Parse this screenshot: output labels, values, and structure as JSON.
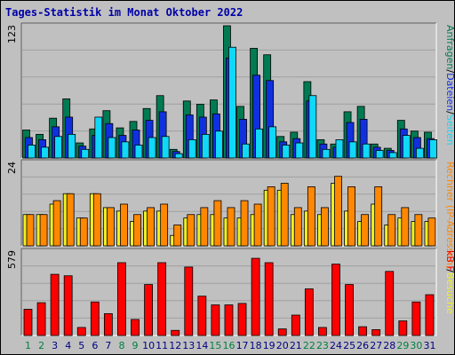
{
  "title": "Tages-Statistik im Monat Oktober 2022",
  "colors": {
    "anfragen": "#007a52",
    "dateien": "#1030e0",
    "seiten": "#10d8f8",
    "besuche": "#f0f020",
    "rechner": "#ff8800",
    "kb": "#ff0000",
    "weekend_label": "#008040",
    "weekday_label": "#000080"
  },
  "chart_data": [
    {
      "type": "bar",
      "title": "",
      "y_max_label": "123",
      "ylim": [
        0,
        123
      ],
      "grid": true,
      "categories": [
        "1",
        "2",
        "3",
        "4",
        "5",
        "6",
        "7",
        "8",
        "9",
        "10",
        "11",
        "12",
        "13",
        "14",
        "15",
        "16",
        "17",
        "18",
        "19",
        "20",
        "21",
        "22",
        "23",
        "24",
        "25",
        "26",
        "27",
        "28",
        "29",
        "30",
        "31"
      ],
      "weekend_days": [
        "1",
        "2",
        "8",
        "9",
        "15",
        "16",
        "22",
        "23",
        "29",
        "30"
      ],
      "legend_label": "Anfragen/Dateien/Seiten",
      "legend_parts": [
        "Anfragen",
        "/",
        "Dateien",
        "/",
        "Seiten"
      ],
      "series": [
        {
          "name": "Anfragen",
          "values": [
            26,
            22,
            37,
            55,
            14,
            27,
            44,
            28,
            34,
            46,
            58,
            8,
            53,
            50,
            54,
            123,
            48,
            102,
            96,
            20,
            24,
            71,
            17,
            13,
            43,
            48,
            13,
            9,
            35,
            25,
            24
          ]
        },
        {
          "name": "Dateien",
          "values": [
            19,
            17,
            29,
            38,
            11,
            21,
            32,
            21,
            26,
            35,
            43,
            6,
            40,
            38,
            41,
            93,
            36,
            77,
            72,
            15,
            18,
            53,
            13,
            10,
            33,
            36,
            10,
            7,
            27,
            19,
            18
          ]
        },
        {
          "name": "Seiten",
          "values": [
            12,
            10,
            20,
            22,
            8,
            38,
            19,
            15,
            12,
            19,
            20,
            4,
            17,
            22,
            25,
            103,
            13,
            27,
            29,
            12,
            14,
            58,
            8,
            17,
            15,
            13,
            7,
            5,
            21,
            9,
            17
          ]
        }
      ]
    },
    {
      "type": "bar",
      "title": "",
      "y_max_label": "24",
      "ylim": [
        0,
        24
      ],
      "grid": true,
      "categories": [
        "1",
        "2",
        "3",
        "4",
        "5",
        "6",
        "7",
        "8",
        "9",
        "10",
        "11",
        "12",
        "13",
        "14",
        "15",
        "16",
        "17",
        "18",
        "19",
        "20",
        "21",
        "22",
        "23",
        "24",
        "25",
        "26",
        "27",
        "28",
        "29",
        "30",
        "31"
      ],
      "legend_label": "Rechner (IP-Adressen)/Besuche",
      "legend_parts": [
        "Rechner (IP-Adressen)",
        "/",
        "Besuche"
      ],
      "series": [
        {
          "name": "Rechner (IP-Adressen)",
          "values": [
            9,
            9,
            13,
            15,
            8,
            15,
            11,
            12,
            9,
            11,
            12,
            6,
            9,
            11,
            13,
            11,
            13,
            12,
            17,
            18,
            11,
            17,
            11,
            20,
            17,
            9,
            17,
            9,
            11,
            9,
            8
          ]
        },
        {
          "name": "Besuche",
          "values": [
            9,
            9,
            12,
            15,
            8,
            15,
            11,
            10,
            7,
            10,
            10,
            3,
            8,
            9,
            9,
            8,
            8,
            9,
            16,
            16,
            9,
            10,
            9,
            18,
            10,
            7,
            12,
            6,
            8,
            7,
            7
          ]
        }
      ]
    },
    {
      "type": "bar",
      "title": "",
      "y_max_label": "579",
      "ylim": [
        0,
        579
      ],
      "grid": true,
      "categories": [
        "1",
        "2",
        "3",
        "4",
        "5",
        "6",
        "7",
        "8",
        "9",
        "10",
        "11",
        "12",
        "13",
        "14",
        "15",
        "16",
        "17",
        "18",
        "19",
        "20",
        "21",
        "22",
        "23",
        "24",
        "25",
        "26",
        "27",
        "28",
        "29",
        "30",
        "31"
      ],
      "legend_label": "kB F",
      "series": [
        {
          "name": "kB F",
          "values": [
            180,
            225,
            420,
            410,
            55,
            230,
            150,
            500,
            110,
            350,
            500,
            35,
            470,
            270,
            210,
            210,
            220,
            530,
            500,
            45,
            140,
            320,
            55,
            490,
            350,
            60,
            40,
            440,
            100,
            230,
            280
          ]
        }
      ]
    }
  ]
}
